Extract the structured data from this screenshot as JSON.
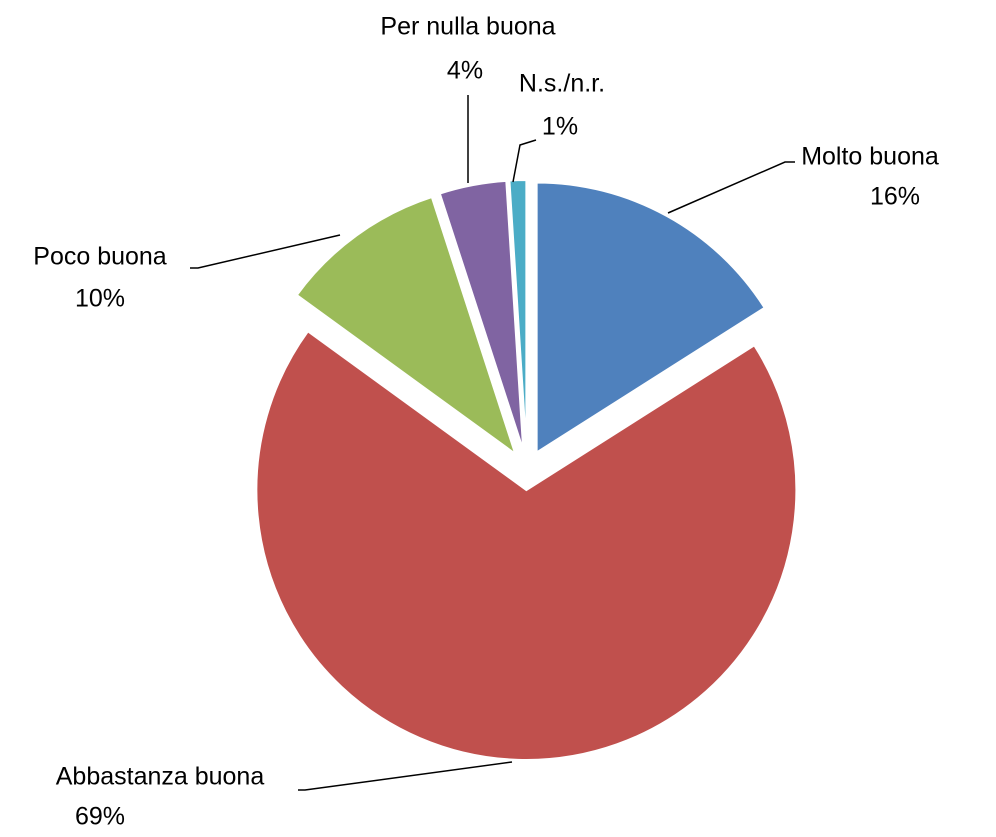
{
  "chart_data": {
    "type": "pie",
    "categories": [
      "Molto buona",
      "Abbastanza buona",
      "Poco buona",
      "Per nulla buona",
      "N.s./n.r."
    ],
    "values": [
      16,
      69,
      10,
      4,
      1
    ],
    "value_labels": [
      "16%",
      "69%",
      "10%",
      "4%",
      "1%"
    ],
    "colors": [
      "#4f81bd",
      "#c0504d",
      "#9bbb59",
      "#8064a2",
      "#4bacc6"
    ],
    "exploded": true
  }
}
